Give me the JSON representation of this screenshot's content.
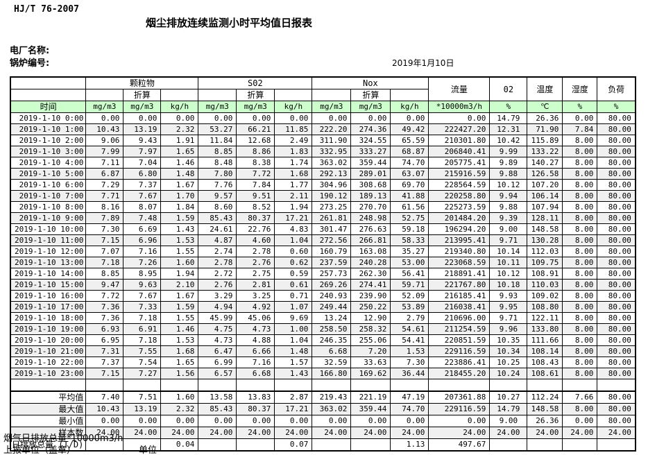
{
  "header": {
    "standard": "HJ/T  76-2007",
    "title": "烟尘排放连续监测小时平均值日报表",
    "plant_label": "电厂名称:",
    "boiler_label": "锅炉编号:",
    "date": "2019年1月10日"
  },
  "colors": {
    "header_green": "#ccffcc",
    "alt_row": "#f0f0f0",
    "border": "#000000"
  },
  "table": {
    "head": {
      "time": "时间",
      "pm": "颗粒物",
      "so2": "S02",
      "nox": "Nox",
      "conv": "折算",
      "flow": "流量",
      "o2": "02",
      "temp": "温度",
      "humidity": "湿度",
      "load": "负荷",
      "u_mgm3": "mg/m3",
      "u_kgh": "kg/h",
      "u_flow": "*10000m3/h",
      "u_pct": "%",
      "u_c": "℃"
    },
    "rows": [
      [
        "2019-1-10 0:00",
        "0.00",
        "0.00",
        "0.00",
        "0.00",
        "0.00",
        "0.00",
        "0.00",
        "0.00",
        "0.00",
        "0.00",
        "14.79",
        "26.36",
        "0.00",
        "80.00"
      ],
      [
        "2019-1-10 1:00",
        "10.43",
        "13.19",
        "2.32",
        "53.27",
        "66.21",
        "11.85",
        "222.20",
        "274.36",
        "49.42",
        "222427.20",
        "12.31",
        "71.90",
        "7.84",
        "80.00"
      ],
      [
        "2019-1-10 2:00",
        "9.06",
        "9.43",
        "1.91",
        "11.84",
        "12.68",
        "2.49",
        "311.90",
        "324.55",
        "65.59",
        "210301.80",
        "10.42",
        "115.89",
        "8.00",
        "80.00"
      ],
      [
        "2019-1-10 3:00",
        "7.99",
        "7.97",
        "1.65",
        "8.85",
        "8.86",
        "1.83",
        "332.95",
        "333.27",
        "68.87",
        "206840.41",
        "9.99",
        "133.22",
        "8.00",
        "80.00"
      ],
      [
        "2019-1-10 4:00",
        "7.11",
        "7.04",
        "1.46",
        "8.48",
        "8.38",
        "1.74",
        "363.02",
        "359.44",
        "74.70",
        "205775.41",
        "9.89",
        "140.27",
        "8.00",
        "80.00"
      ],
      [
        "2019-1-10 5:00",
        "6.87",
        "6.80",
        "1.48",
        "7.80",
        "7.72",
        "1.68",
        "292.13",
        "289.01",
        "63.07",
        "215916.59",
        "9.88",
        "126.58",
        "8.00",
        "80.00"
      ],
      [
        "2019-1-10 6:00",
        "7.29",
        "7.37",
        "1.67",
        "7.76",
        "7.84",
        "1.77",
        "304.96",
        "308.68",
        "69.70",
        "228564.59",
        "10.12",
        "107.20",
        "8.00",
        "80.00"
      ],
      [
        "2019-1-10 7:00",
        "7.71",
        "7.67",
        "1.70",
        "9.57",
        "9.51",
        "2.11",
        "190.12",
        "189.13",
        "41.88",
        "220258.80",
        "9.94",
        "106.14",
        "8.00",
        "80.00"
      ],
      [
        "2019-1-10 8:00",
        "8.16",
        "8.07",
        "1.84",
        "8.60",
        "8.52",
        "1.94",
        "273.25",
        "270.70",
        "61.56",
        "225273.59",
        "9.88",
        "107.94",
        "8.00",
        "80.00"
      ],
      [
        "2019-1-10 9:00",
        "7.89",
        "7.48",
        "1.59",
        "85.43",
        "80.37",
        "17.21",
        "261.81",
        "248.98",
        "52.75",
        "201484.20",
        "9.39",
        "128.11",
        "8.00",
        "80.00"
      ],
      [
        "2019-1-10 10:00",
        "7.30",
        "6.69",
        "1.43",
        "24.61",
        "22.76",
        "4.83",
        "301.47",
        "276.63",
        "59.18",
        "196294.20",
        "9.00",
        "148.58",
        "8.00",
        "80.00"
      ],
      [
        "2019-1-10 11:00",
        "7.15",
        "6.96",
        "1.53",
        "4.87",
        "4.60",
        "1.04",
        "272.56",
        "266.81",
        "58.33",
        "213995.41",
        "9.71",
        "130.28",
        "8.00",
        "80.00"
      ],
      [
        "2019-1-10 12:00",
        "7.07",
        "7.16",
        "1.55",
        "2.74",
        "2.78",
        "0.60",
        "160.79",
        "163.08",
        "35.27",
        "219340.80",
        "10.14",
        "112.03",
        "8.00",
        "80.00"
      ],
      [
        "2019-1-10 13:00",
        "7.18",
        "7.26",
        "1.60",
        "2.78",
        "2.76",
        "0.62",
        "237.59",
        "240.28",
        "53.00",
        "223068.59",
        "10.11",
        "109.75",
        "8.00",
        "80.00"
      ],
      [
        "2019-1-10 14:00",
        "8.85",
        "8.95",
        "1.94",
        "2.72",
        "2.75",
        "0.59",
        "257.73",
        "262.30",
        "56.41",
        "218891.41",
        "10.12",
        "108.91",
        "8.00",
        "80.00"
      ],
      [
        "2019-1-10 15:00",
        "9.47",
        "9.63",
        "2.10",
        "2.76",
        "2.81",
        "0.61",
        "269.26",
        "274.41",
        "59.71",
        "221767.80",
        "10.18",
        "110.03",
        "8.00",
        "80.00"
      ],
      [
        "2019-1-10 16:00",
        "7.72",
        "7.67",
        "1.67",
        "3.29",
        "3.25",
        "0.71",
        "240.93",
        "239.90",
        "52.09",
        "216185.41",
        "9.93",
        "109.02",
        "8.00",
        "80.00"
      ],
      [
        "2019-1-10 17:00",
        "7.36",
        "7.33",
        "1.59",
        "4.94",
        "4.92",
        "1.07",
        "249.44",
        "250.22",
        "53.89",
        "216038.41",
        "9.95",
        "108.80",
        "8.00",
        "80.00"
      ],
      [
        "2019-1-10 18:00",
        "7.36",
        "7.18",
        "1.55",
        "45.99",
        "45.06",
        "9.69",
        "13.24",
        "12.90",
        "2.79",
        "210696.00",
        "9.71",
        "122.11",
        "8.00",
        "80.00"
      ],
      [
        "2019-1-10 19:00",
        "6.93",
        "6.91",
        "1.46",
        "4.75",
        "4.73",
        "1.00",
        "258.50",
        "258.32",
        "54.61",
        "211254.59",
        "9.96",
        "133.80",
        "8.00",
        "80.00"
      ],
      [
        "2019-1-10 20:00",
        "6.95",
        "7.18",
        "1.53",
        "4.73",
        "4.88",
        "1.04",
        "246.35",
        "255.06",
        "54.41",
        "220851.59",
        "10.35",
        "111.66",
        "8.00",
        "80.00"
      ],
      [
        "2019-1-10 21:00",
        "7.31",
        "7.55",
        "1.68",
        "6.47",
        "6.66",
        "1.48",
        "6.68",
        "7.20",
        "1.53",
        "229116.59",
        "10.34",
        "108.14",
        "8.00",
        "80.00"
      ],
      [
        "2019-1-10 22:00",
        "7.37",
        "7.54",
        "1.65",
        "6.99",
        "7.16",
        "1.57",
        "32.59",
        "33.63",
        "7.30",
        "223886.41",
        "10.25",
        "108.43",
        "8.00",
        "80.00"
      ],
      [
        "2019-1-10 23:00",
        "7.15",
        "7.27",
        "1.56",
        "6.57",
        "6.68",
        "1.43",
        "166.80",
        "169.62",
        "36.44",
        "218455.20",
        "10.24",
        "108.61",
        "8.00",
        "80.00"
      ]
    ],
    "summary": [
      {
        "label": "平均值",
        "values": [
          "7.40",
          "7.51",
          "1.60",
          "13.58",
          "13.83",
          "2.87",
          "219.43",
          "221.19",
          "47.19",
          "207361.88",
          "10.27",
          "112.24",
          "7.66",
          "80.00"
        ]
      },
      {
        "label": "最大值",
        "values": [
          "10.43",
          "13.19",
          "2.32",
          "85.43",
          "80.37",
          "17.21",
          "363.02",
          "359.44",
          "74.70",
          "229116.59",
          "14.79",
          "148.58",
          "8.00",
          "80.00"
        ]
      },
      {
        "label": "最小值",
        "values": [
          "0.00",
          "0.00",
          "0.00",
          "0.00",
          "0.00",
          "0.00",
          "0.00",
          "0.00",
          "0.00",
          "0.00",
          "9.00",
          "26.36",
          "0.00",
          "80.00"
        ]
      },
      {
        "label": "样本数",
        "values": [
          "24.00",
          "24.00",
          "24.00",
          "24.00",
          "24.00",
          "24.00",
          "24.00",
          "24.00",
          "24.00",
          "24.00",
          "24.00",
          "24.00",
          "24.00",
          "24.00"
        ]
      },
      {
        "label": "日排放总量 (T/D)",
        "values": [
          "",
          "",
          "0.04",
          "",
          "",
          "0.07",
          "",
          "",
          "1.13",
          "497.67",
          "",
          "",
          "",
          ""
        ]
      }
    ]
  },
  "footer": {
    "flue_total_label": "烟气日排放总量*10000m3/h",
    "report_unit_label": "上报单位（盖章）",
    "unit_label": "单位"
  }
}
